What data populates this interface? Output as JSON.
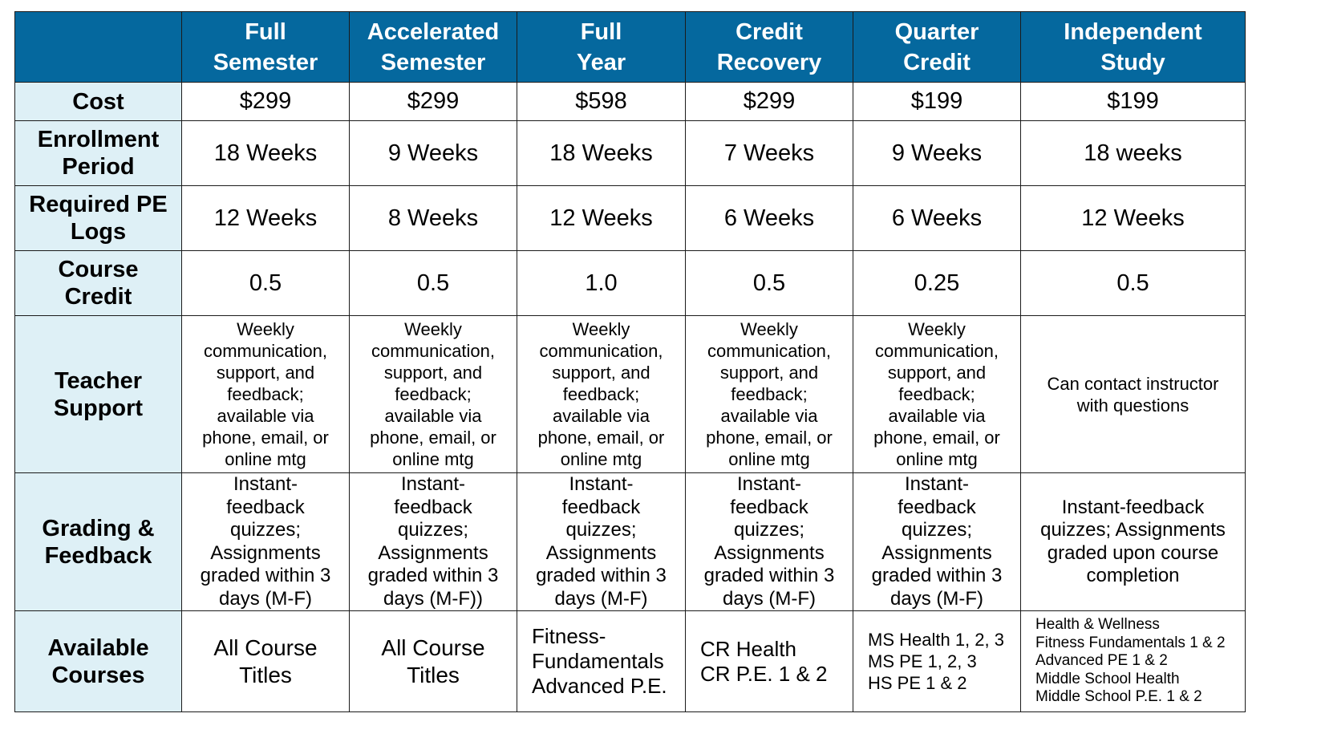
{
  "table": {
    "columns": [
      {
        "line1": "Full",
        "line2": "Semester"
      },
      {
        "line1": "Accelerated",
        "line2": "Semester"
      },
      {
        "line1": "Full",
        "line2": "Year"
      },
      {
        "line1": "Credit",
        "line2": "Recovery"
      },
      {
        "line1": "Quarter",
        "line2": "Credit"
      },
      {
        "line1": "Independent",
        "line2": "Study"
      }
    ],
    "rows": {
      "cost": {
        "label": [
          "Cost"
        ],
        "values": [
          "$299",
          "$299",
          "$598",
          "$299",
          "$199",
          "$199"
        ]
      },
      "enrollment": {
        "label": [
          "Enrollment",
          "Period"
        ],
        "values": [
          "18 Weeks",
          "9 Weeks",
          "18 Weeks",
          "7 Weeks",
          "9 Weeks",
          "18 weeks"
        ]
      },
      "pe_logs": {
        "label": [
          "Required PE",
          "Logs"
        ],
        "values": [
          "12 Weeks",
          "8 Weeks",
          "12 Weeks",
          "6 Weeks",
          "6 Weeks",
          "12 Weeks"
        ]
      },
      "credit": {
        "label": [
          "Course",
          "Credit"
        ],
        "values": [
          "0.5",
          "0.5",
          "1.0",
          "0.5",
          "0.25",
          "0.5"
        ]
      },
      "teacher_support": {
        "label": [
          "Teacher",
          "Support"
        ],
        "values": [
          [
            "Weekly",
            "communication,",
            "support, and",
            "feedback;",
            "available via",
            "phone, email, or",
            "online mtg"
          ],
          [
            "Weekly",
            "communication,",
            "support, and",
            "feedback;",
            "available via",
            "phone, email, or",
            "online mtg"
          ],
          [
            "Weekly",
            "communication,",
            "support, and",
            "feedback;",
            "available via",
            "phone, email, or",
            "online mtg"
          ],
          [
            "Weekly",
            "communication,",
            "support, and",
            "feedback;",
            "available via",
            "phone, email, or",
            "online mtg"
          ],
          [
            "Weekly",
            "communication,",
            "support, and",
            "feedback;",
            "available via",
            "phone, email, or",
            "online mtg"
          ],
          [
            "Can contact instructor",
            "with questions"
          ]
        ]
      },
      "grading": {
        "label": [
          "Grading &",
          "Feedback"
        ],
        "values": [
          [
            "Instant-",
            "feedback",
            "quizzes;",
            "Assignments",
            "graded within 3",
            "days (M-F)"
          ],
          [
            "Instant-",
            "feedback",
            "quizzes;",
            "Assignments",
            "graded within 3",
            "days (M-F))"
          ],
          [
            "Instant-",
            "feedback",
            "quizzes;",
            "Assignments",
            "graded within 3",
            "days (M-F)"
          ],
          [
            "Instant-",
            "feedback",
            "quizzes;",
            "Assignments",
            "graded within 3",
            "days (M-F)"
          ],
          [
            "Instant-",
            "feedback",
            "quizzes;",
            "Assignments",
            "graded within 3",
            "days (M-F)"
          ],
          [
            "Instant-feedback",
            "quizzes; Assignments",
            "graded upon course",
            "completion"
          ]
        ]
      },
      "courses": {
        "label": [
          "Available",
          "Courses"
        ],
        "values": [
          [
            "All Course",
            "Titles"
          ],
          [
            "All Course",
            "Titles"
          ],
          [
            "Fitness-",
            "Fundamentals",
            "Advanced P.E."
          ],
          [
            "CR Health",
            "CR P.E. 1 & 2"
          ],
          [
            "MS Health 1, 2, 3",
            "MS PE 1, 2, 3",
            "HS PE 1 & 2"
          ],
          [
            "Health & Wellness",
            "Fitness Fundamentals 1 & 2",
            "Advanced PE 1 & 2",
            "Middle School Health",
            "Middle School P.E. 1 & 2"
          ]
        ]
      }
    },
    "colors": {
      "header_bg": "#05689e",
      "header_text": "#ffffff",
      "row_label_bg": "#def0f6",
      "border": "#1b1b1b"
    }
  }
}
